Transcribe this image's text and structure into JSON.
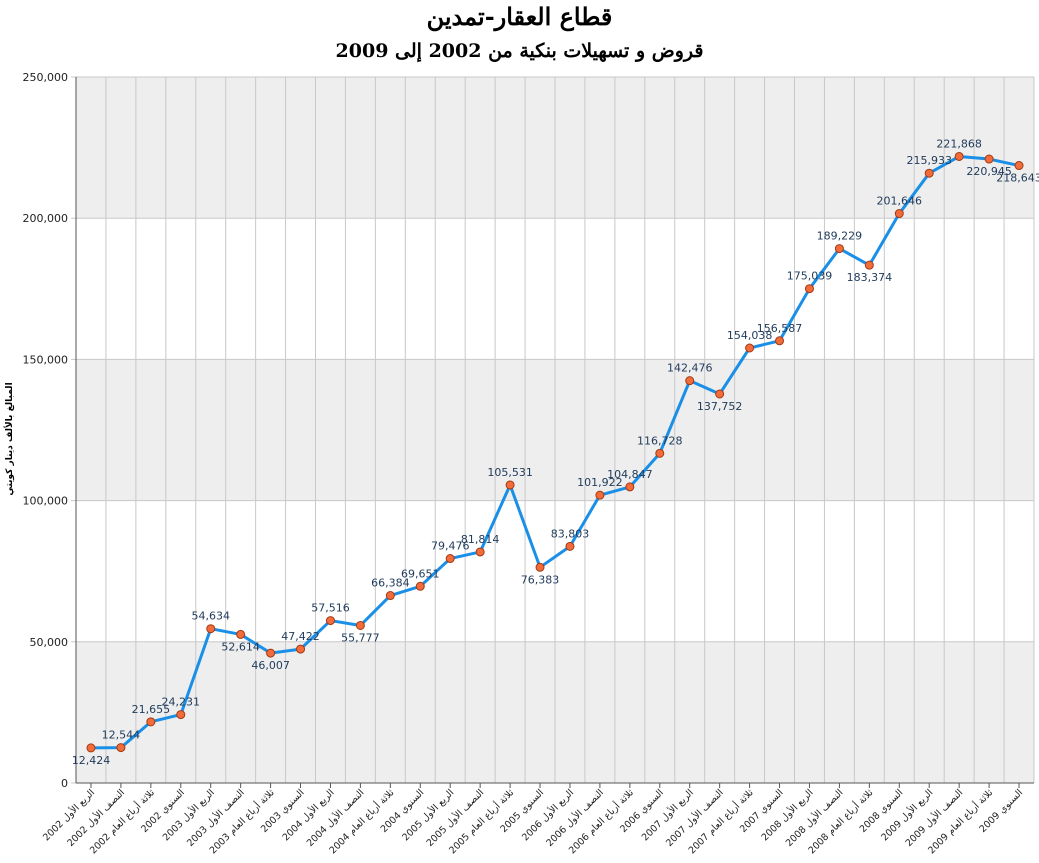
{
  "chart_data": {
    "type": "line",
    "title": "قطاع العقار-تمدين",
    "subtitle": "قروض و تسهيلات بنكية من 2002 إلى 2009",
    "ylabel": "المبالغ بالألف دينار كويتي",
    "ylim": [
      0,
      250000
    ],
    "yticks": [
      "0",
      "50,000",
      "100,000",
      "150,000",
      "200,000",
      "250,000"
    ],
    "grid": true,
    "categories": [
      "الربع الأول 2002",
      "النصف الأول 2002",
      "ثلاثة أرباع العام 2002",
      "السنوي 2002",
      "الربع الأول 2003",
      "النصف الأول 2003",
      "ثلاثة أرباع العام 2003",
      "السنوي 2003",
      "الربع الأول 2004",
      "النصف الأول 2004",
      "ثلاثة أرباع العام 2004",
      "السنوي 2004",
      "الربع الأول 2005",
      "النصف الأول 2005",
      "ثلاثة أرباع العام 2005",
      "السنوي 2005",
      "الربع الأول 2006",
      "النصف الأول 2006",
      "ثلاثة أرباع العام 2006",
      "السنوي 2006",
      "الربع الأول 2007",
      "النصف الأول 2007",
      "ثلاثة أرباع العام 2007",
      "السنوي 2007",
      "الربع الأول 2008",
      "النصف الأول 2008",
      "ثلاثة أرباع العام 2008",
      "السنوي 2008",
      "الربع الأول 2009",
      "النصف الأول 2009",
      "ثلاثة أرباع العام 2009",
      "السنوي 2009"
    ],
    "values": [
      12424,
      12544,
      21655,
      24231,
      54634,
      52614,
      46007,
      47422,
      57516,
      55777,
      66384,
      69651,
      79476,
      81814,
      105531,
      76383,
      83803,
      101922,
      104847,
      116728,
      142476,
      137752,
      154038,
      156587,
      175039,
      189229,
      183374,
      201646,
      215933,
      221868,
      220945,
      218643
    ],
    "data_labels": [
      "12,424",
      "12,544",
      "21,655",
      "24,231",
      "54,634",
      "52,614",
      "46,007",
      "47,422",
      "57,516",
      "55,777",
      "66,384",
      "69,651",
      "79,476",
      "81,814",
      "105,531",
      "76,383",
      "83,803",
      "101,922",
      "104,847",
      "116,728",
      "142,476",
      "137,752",
      "154,038",
      "156,587",
      "175,039",
      "189,229",
      "183,374",
      "201,646",
      "215,933",
      "221,868",
      "220,945",
      "218,643"
    ],
    "colors": {
      "line": "#1a8fe8",
      "marker": "#f26b3a",
      "marker_edge": "#a33a12",
      "band": "#eeeeee",
      "grid": "#c8c8c8",
      "label": "#1f3a5a"
    }
  }
}
